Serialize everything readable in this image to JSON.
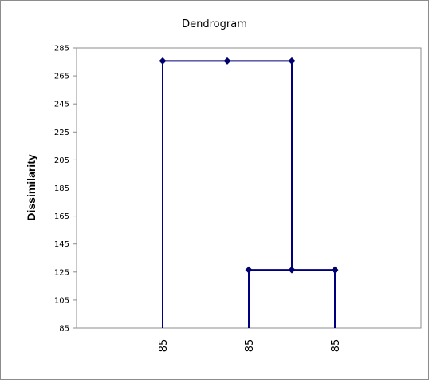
{
  "chart_data": {
    "type": "dendrogram",
    "title": "Dendrogram",
    "ylabel": "Dissimilarity",
    "xlabel": "",
    "ylim": [
      85,
      285
    ],
    "yticks": [
      85,
      105,
      125,
      145,
      165,
      185,
      205,
      225,
      245,
      265,
      285
    ],
    "leaves": [
      {
        "label": "85",
        "position": 1
      },
      {
        "label": "85",
        "position": 2
      },
      {
        "label": "85",
        "position": 3
      }
    ],
    "merges": [
      {
        "left_pos": 2,
        "right_pos": 3,
        "height": 126.5,
        "node_pos": 2.5
      },
      {
        "left_pos": 1,
        "right_pos": 2.5,
        "height": 275.7,
        "node_pos": 1.75
      }
    ],
    "grid": false,
    "colors": {
      "line": "#00007f",
      "marker": "#00006e",
      "axis": "#8c8c8c"
    }
  }
}
